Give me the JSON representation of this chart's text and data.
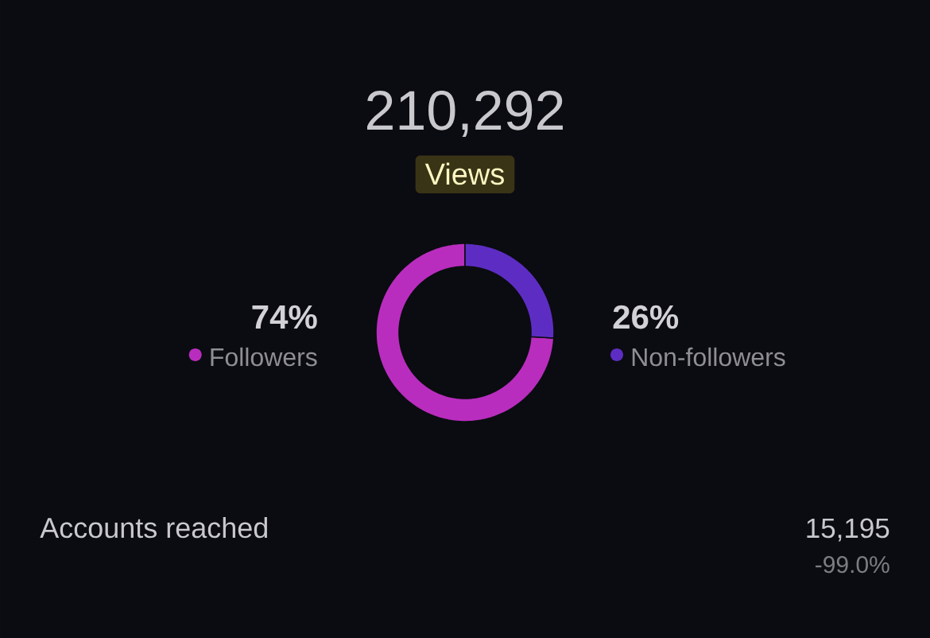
{
  "chart_data": {
    "type": "donut",
    "title": "210,292",
    "subtitle": "Views",
    "categories": [
      "Followers",
      "Non-followers"
    ],
    "values": [
      74,
      26
    ],
    "colors": [
      "#b92dbe",
      "#5d2dc3"
    ],
    "value_labels": [
      "74%",
      "26%"
    ],
    "legend": "center",
    "annotations": [
      "Accounts reached",
      "15,195",
      "-99.0%"
    ]
  }
}
